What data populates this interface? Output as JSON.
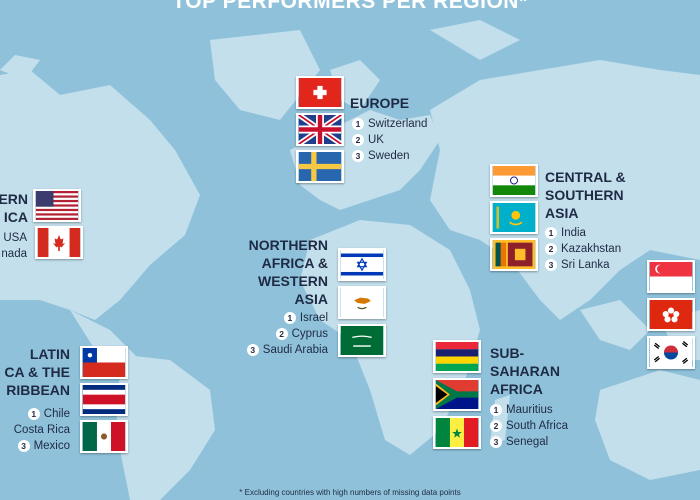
{
  "title": "TOP PERFORMERS PER REGION*",
  "footnote": "* Excluding countries with high numbers of missing data points",
  "regions": {
    "europe": {
      "title": "EUROPE",
      "countries": [
        {
          "rank": "1",
          "name": "Switzerland"
        },
        {
          "rank": "2",
          "name": "UK"
        },
        {
          "rank": "3",
          "name": "Sweden"
        }
      ]
    },
    "north_america": {
      "title_line1": "ERN",
      "title_line2": "ICA",
      "countries": [
        {
          "rank": "",
          "name": "USA"
        },
        {
          "rank": "",
          "name": "nada"
        }
      ]
    },
    "central_southern_asia": {
      "title_line1": "CENTRAL &",
      "title_line2": "SOUTHERN",
      "title_line3": "ASIA",
      "countries": [
        {
          "rank": "1",
          "name": "India"
        },
        {
          "rank": "2",
          "name": "Kazakhstan"
        },
        {
          "rank": "3",
          "name": "Sri Lanka"
        }
      ]
    },
    "nafrica_wasia": {
      "title_line1": "NORTHERN",
      "title_line2": "AFRICA &",
      "title_line3": "WESTERN",
      "title_line4": "ASIA",
      "countries": [
        {
          "rank": "1",
          "name": "Israel"
        },
        {
          "rank": "2",
          "name": "Cyprus"
        },
        {
          "rank": "3",
          "name": "Saudi Arabia"
        }
      ]
    },
    "latin_america": {
      "title_line1": "LATIN",
      "title_line2": "CA & THE",
      "title_line3": "RIBBEAN",
      "countries": [
        {
          "rank": "1",
          "name": "Chile"
        },
        {
          "rank": "",
          "name": "Costa Rica"
        },
        {
          "rank": "3",
          "name": "Mexico"
        }
      ]
    },
    "ssa": {
      "title_line1": "SUB-",
      "title_line2": "SAHARAN",
      "title_line3": "AFRICA",
      "countries": [
        {
          "rank": "1",
          "name": "Mauritius"
        },
        {
          "rank": "2",
          "name": "South Africa"
        },
        {
          "rank": "3",
          "name": "Senegal"
        }
      ]
    }
  },
  "colors": {
    "ocean": "#8fc2da",
    "land": "#c3dfec",
    "text": "#1f2a44",
    "title": "#ffffff"
  }
}
